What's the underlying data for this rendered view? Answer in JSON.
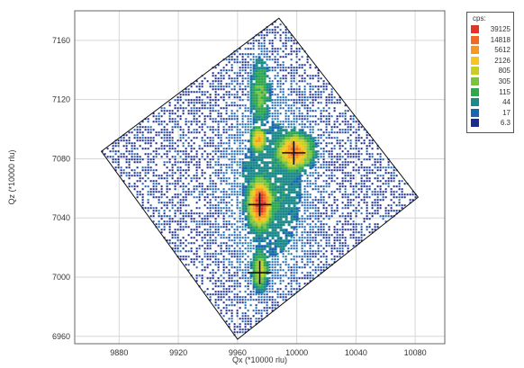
{
  "chart_data": {
    "type": "heatmap",
    "title": "",
    "xlabel": "Qx (*10000 rlu)",
    "ylabel": "Qz (*10000 rlu)",
    "xlim": [
      9850,
      10100
    ],
    "ylim": [
      6955,
      7180
    ],
    "x_ticks": [
      "9880",
      "9920",
      "9960",
      "10000",
      "10040",
      "10080"
    ],
    "y_ticks": [
      "6960",
      "7000",
      "7040",
      "7080",
      "7120",
      "7160"
    ],
    "grid": true,
    "scan_region": {
      "shape": "rotated square",
      "corners": [
        [
          9988,
          7175
        ],
        [
          10082,
          7054
        ],
        [
          9960,
          6958
        ],
        [
          9868,
          7085
        ]
      ]
    },
    "peaks": [
      {
        "x": 9998,
        "y": 7084
      },
      {
        "x": 9975,
        "y": 7049
      },
      {
        "x": 9975,
        "y": 7003
      }
    ],
    "intensity_features": [
      {
        "x": 9975,
        "y": 7050,
        "sx": 6,
        "sy": 12,
        "level": 0.97
      },
      {
        "x": 9998,
        "y": 7085,
        "sx": 9,
        "sy": 9,
        "level": 0.8
      },
      {
        "x": 9974,
        "y": 7093,
        "sx": 4,
        "sy": 6,
        "level": 0.72
      },
      {
        "x": 9975,
        "y": 7005,
        "sx": 4,
        "sy": 10,
        "level": 0.55
      },
      {
        "x": 9975,
        "y": 7125,
        "sx": 5,
        "sy": 18,
        "level": 0.4
      },
      {
        "x": 9982,
        "y": 7060,
        "sx": 20,
        "sy": 45,
        "level": 0.25
      }
    ],
    "legend": {
      "title": "cps:",
      "placement": "top-right",
      "levels": [
        {
          "label": "39125",
          "color": "#e4342a"
        },
        {
          "label": "14818",
          "color": "#f06a22"
        },
        {
          "label": "5612",
          "color": "#f59a1f"
        },
        {
          "label": "2126",
          "color": "#f7c51d"
        },
        {
          "label": "805",
          "color": "#c6cf22"
        },
        {
          "label": "305",
          "color": "#7cc242"
        },
        {
          "label": "115",
          "color": "#2fa84f"
        },
        {
          "label": "44",
          "color": "#1c8a8a"
        },
        {
          "label": "17",
          "color": "#1a64b4"
        },
        {
          "label": "6.3",
          "color": "#1c2a8c"
        }
      ]
    }
  }
}
